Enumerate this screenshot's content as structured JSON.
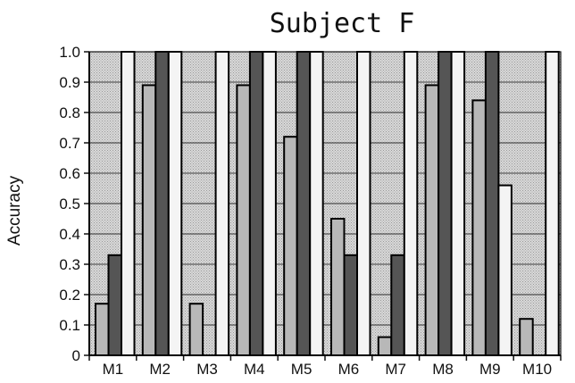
{
  "chart_data": {
    "type": "bar",
    "title": "Subject F",
    "xlabel": "",
    "ylabel": "Accuracy",
    "ylim": [
      0,
      1.0
    ],
    "yticks": [
      "0",
      "0.1",
      "0.2",
      "0.3",
      "0.4",
      "0.5",
      "0.6",
      "0.7",
      "0.8",
      "0.9",
      "1.0"
    ],
    "grid": true,
    "legend": "none",
    "categories": [
      "M1",
      "M2",
      "M3",
      "M4",
      "M5",
      "M6",
      "M7",
      "M8",
      "M9",
      "M10"
    ],
    "series": [
      {
        "color": "#b8b8b8",
        "values": [
          0.17,
          0.89,
          0.17,
          0.89,
          0.72,
          0.45,
          0.06,
          0.89,
          0.84,
          0.12
        ]
      },
      {
        "color": "#555555",
        "values": [
          0.33,
          1.0,
          0.0,
          1.0,
          1.0,
          0.33,
          0.33,
          1.0,
          1.0,
          0.0
        ]
      },
      {
        "color": "#f4f4f4",
        "values": [
          1.0,
          1.0,
          1.0,
          1.0,
          1.0,
          1.0,
          1.0,
          1.0,
          0.56,
          1.0
        ]
      }
    ]
  }
}
